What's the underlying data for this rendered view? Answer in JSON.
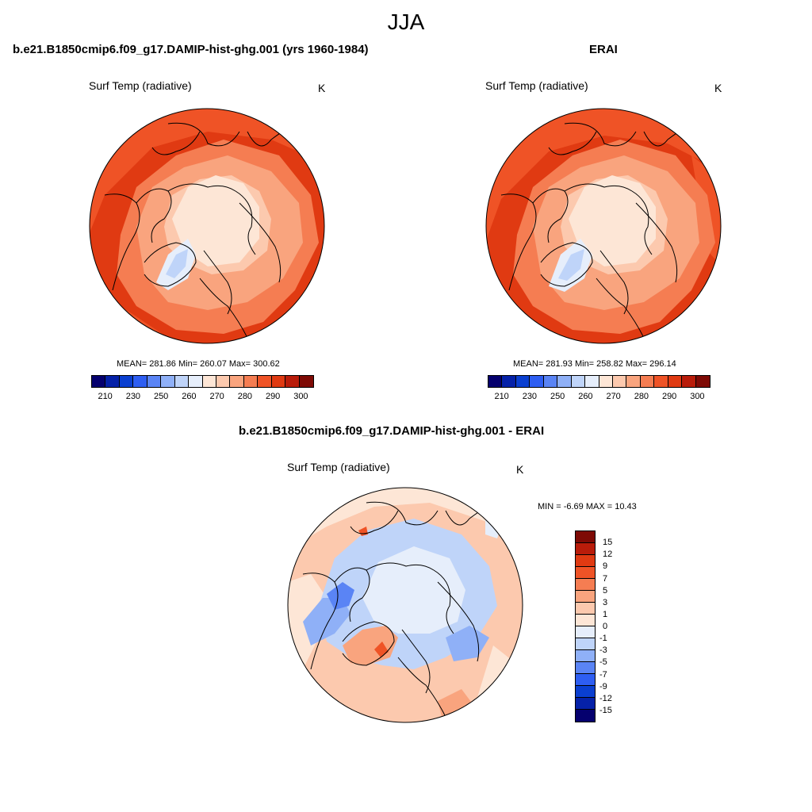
{
  "page": {
    "title": "JJA"
  },
  "panels": [
    {
      "title": "b.e21.B1850cmip6.f09_g17.DAMIP-hist-ghg.001 (yrs 1960-1984)",
      "variable": "Surf Temp (radiative)",
      "units": "K",
      "stats_text": "MEAN= 281.86  Min= 260.07  Max= 300.62",
      "stats": {
        "mean": 281.86,
        "min": 260.07,
        "max": 300.62
      }
    },
    {
      "title": "ERAI",
      "variable": "Surf Temp (radiative)",
      "units": "K",
      "stats_text": "MEAN= 281.93  Min= 258.82  Max= 296.14",
      "stats": {
        "mean": 281.93,
        "min": 258.82,
        "max": 296.14
      }
    }
  ],
  "diff_panel": {
    "title": "b.e21.B1850cmip6.f09_g17.DAMIP-hist-ghg.001 - ERAI",
    "variable": "Surf Temp (radiative)",
    "units": "K",
    "stats_text": "MIN =  -6.69 MAX =  10.43",
    "stats": {
      "min": -6.69,
      "max": 10.43
    }
  },
  "abs_colorbar": {
    "colors": [
      "#05006e",
      "#0521a8",
      "#0a3fd0",
      "#2e5ef2",
      "#5a84f5",
      "#8fb0f7",
      "#bfd4f9",
      "#e6eefb",
      "#fde6d6",
      "#fcc9ae",
      "#f9a47e",
      "#f57d52",
      "#ef5326",
      "#e03a12",
      "#b91c0a",
      "#7e0a05"
    ],
    "tick_labels": [
      "210",
      "230",
      "250",
      "260",
      "270",
      "280",
      "290",
      "300"
    ]
  },
  "diff_colorbar": {
    "colors": [
      "#7e0a05",
      "#b91c0a",
      "#e03a12",
      "#ef5326",
      "#f57d52",
      "#f9a47e",
      "#fcc9ae",
      "#fde6d6",
      "#e6eefb",
      "#bfd4f9",
      "#8fb0f7",
      "#5a84f5",
      "#2e5ef2",
      "#0a3fd0",
      "#0521a8",
      "#05006e"
    ],
    "tick_labels": [
      "15",
      "12",
      "9",
      "7",
      "5",
      "3",
      "1",
      "0",
      "-1",
      "-3",
      "-5",
      "-7",
      "-9",
      "-12",
      "-15"
    ]
  }
}
